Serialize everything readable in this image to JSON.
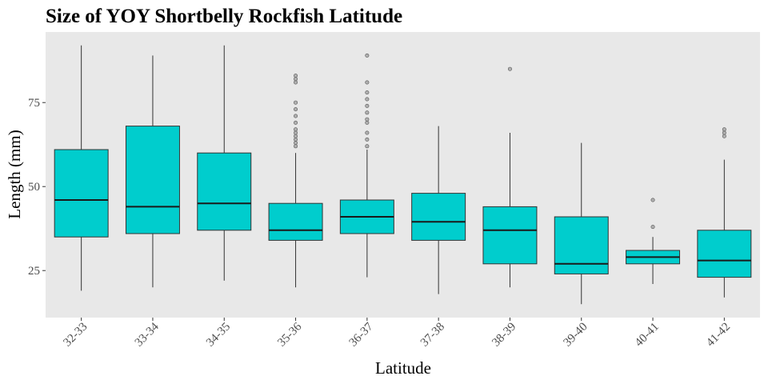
{
  "chart_data": {
    "type": "boxplot",
    "title": "Size of YOY Shortbelly Rockfish Latitude",
    "xlabel": "Latitude",
    "ylabel": "Length (mm)",
    "ylim": [
      11,
      96
    ],
    "yticks": [
      25,
      50,
      75
    ],
    "grid": false,
    "fill_color": "#00CDCD",
    "panel_color": "#E8E8E8",
    "outlier_color": "#999999",
    "categories": [
      "32-33",
      "33-34",
      "34-35",
      "35-36",
      "36-37",
      "37-38",
      "38-39",
      "39-40",
      "40-41",
      "41-42"
    ],
    "boxes": [
      {
        "category": "32-33",
        "min": 19,
        "q1": 35,
        "median": 46,
        "q3": 61,
        "max": 92,
        "outliers": []
      },
      {
        "category": "33-34",
        "min": 20,
        "q1": 36,
        "median": 44,
        "q3": 68,
        "max": 89,
        "outliers": []
      },
      {
        "category": "34-35",
        "min": 22,
        "q1": 37,
        "median": 45,
        "q3": 60,
        "max": 92,
        "outliers": []
      },
      {
        "category": "35-36",
        "min": 20,
        "q1": 34,
        "median": 37,
        "q3": 45,
        "max": 60,
        "outliers": [
          62,
          63,
          64,
          65,
          66,
          67,
          69,
          71,
          73,
          75,
          81,
          82,
          83
        ]
      },
      {
        "category": "36-37",
        "min": 23,
        "q1": 36,
        "median": 41,
        "q3": 46,
        "max": 61,
        "outliers": [
          62,
          64,
          66,
          69,
          70,
          72,
          74,
          76,
          78,
          81,
          89
        ]
      },
      {
        "category": "37-38",
        "min": 18,
        "q1": 34,
        "median": 39.5,
        "q3": 48,
        "max": 68,
        "outliers": []
      },
      {
        "category": "38-39",
        "min": 20,
        "q1": 27,
        "median": 37,
        "q3": 44,
        "max": 66,
        "outliers": [
          85
        ]
      },
      {
        "category": "39-40",
        "min": 15,
        "q1": 24,
        "median": 27,
        "q3": 41,
        "max": 63,
        "outliers": []
      },
      {
        "category": "40-41",
        "min": 21,
        "q1": 27,
        "median": 29,
        "q3": 31,
        "max": 35,
        "outliers": [
          38,
          46
        ]
      },
      {
        "category": "41-42",
        "min": 17,
        "q1": 23,
        "median": 28,
        "q3": 37,
        "max": 58,
        "outliers": [
          65,
          66,
          67
        ]
      }
    ]
  }
}
